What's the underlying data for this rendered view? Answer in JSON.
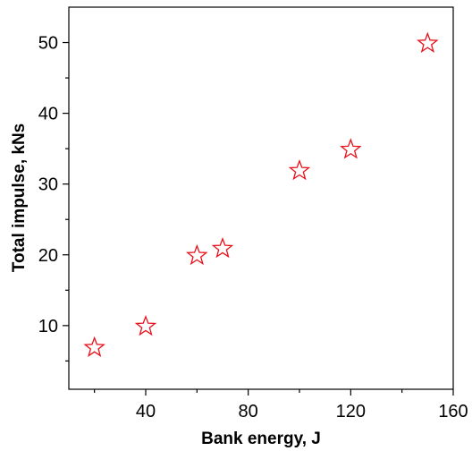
{
  "chart_data": {
    "type": "scatter",
    "xlabel": "Bank energy, J",
    "ylabel": "Total impulse, kNs",
    "xlim": [
      10,
      160
    ],
    "ylim": [
      1,
      55
    ],
    "x_ticks": [
      40,
      80,
      120,
      160
    ],
    "x_minor_ticks": [
      20,
      60,
      100,
      140
    ],
    "y_ticks": [
      10,
      20,
      30,
      40,
      50
    ],
    "y_minor_ticks": [
      5,
      15,
      25,
      35,
      45
    ],
    "grid": false,
    "legend": "none",
    "marker": "open-star",
    "marker_color": "#e8101a",
    "series": [
      {
        "x": [
          20,
          40,
          60,
          70,
          100,
          120,
          150
        ],
        "y": [
          7,
          10,
          20,
          21,
          32,
          35,
          50
        ]
      }
    ]
  }
}
